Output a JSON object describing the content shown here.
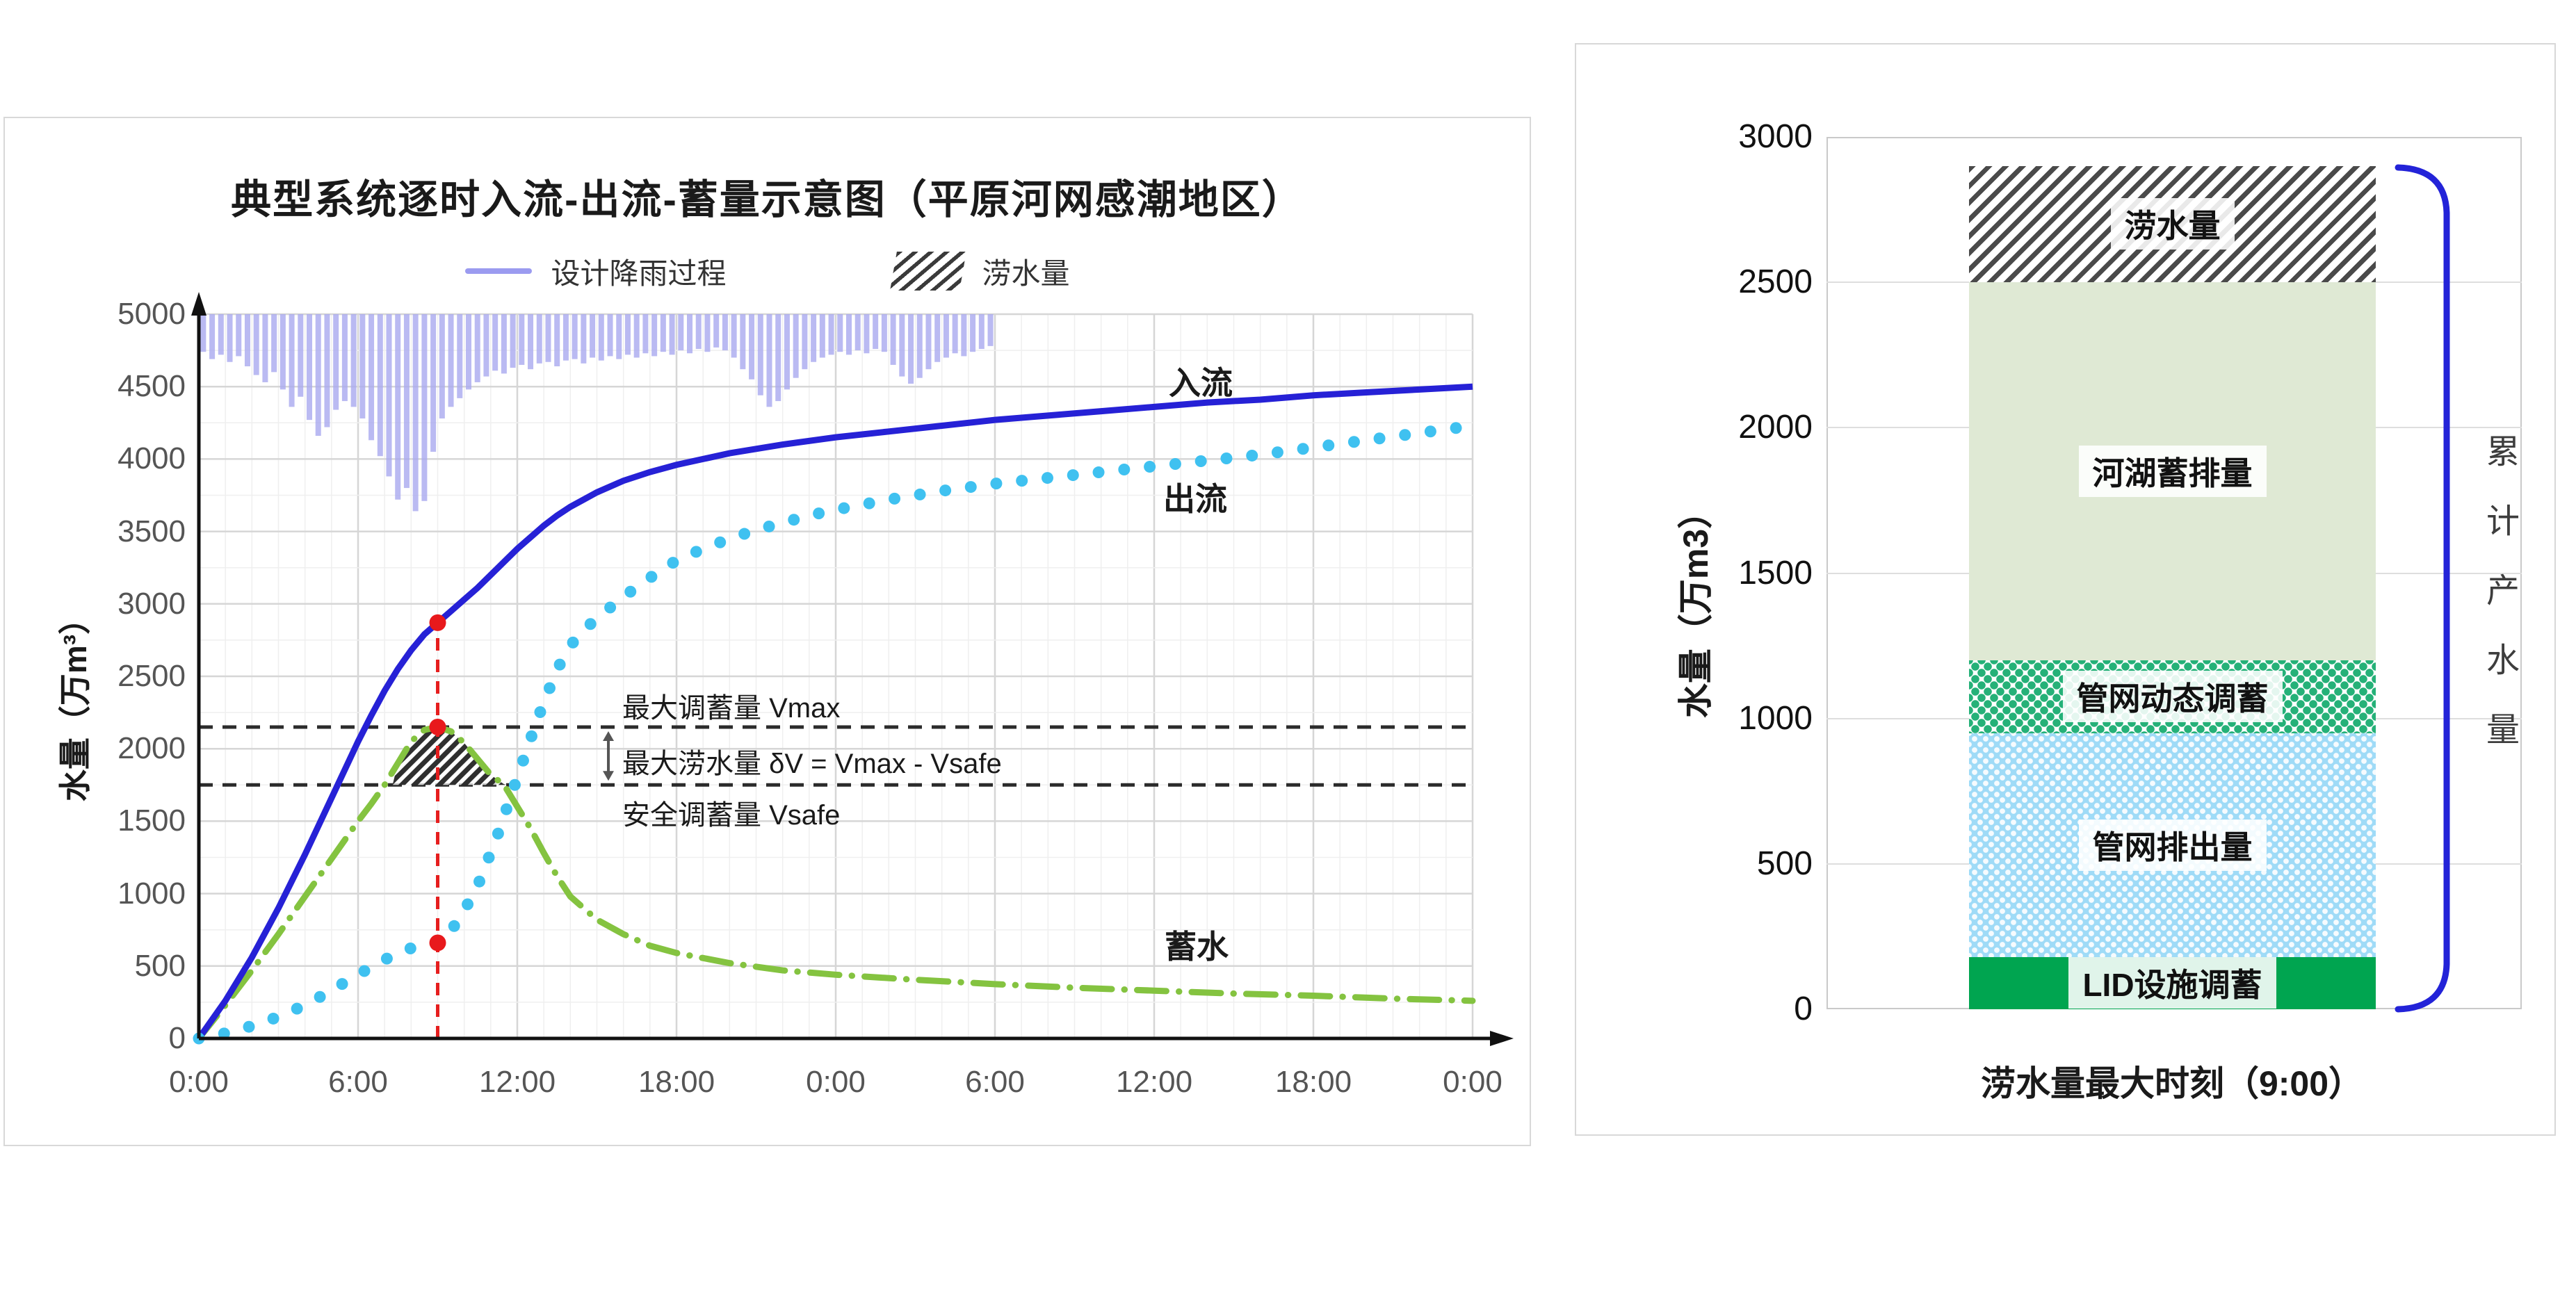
{
  "left_panel": {
    "title": "典型系统逐时入流-出流-蓄量示意图（平原河网感潮地区）",
    "legend": {
      "rain_label": "设计降雨过程",
      "waterlogging_label": "涝水量"
    },
    "y_axis_title": "水量（万m³）",
    "series_labels": {
      "inflow": "入流",
      "outflow": "出流",
      "storage": "蓄水"
    },
    "annotation_labels": {
      "vmax": "最大调蓄量 Vmax",
      "delta": "最大涝水量 δV = Vmax - Vsafe",
      "vsafe": "安全调蓄量 Vsafe"
    }
  },
  "right_panel": {
    "y_axis_title": "水量（万m3）",
    "x_label": "涝水量最大时刻（9:00）",
    "bracket_label": "累计产水量"
  },
  "chart_data": [
    {
      "type": "line",
      "title": "典型系统逐时入流-出流-蓄量示意图（平原河网感潮地区）",
      "ylabel": "水量（万m³）",
      "ylim": [
        0,
        5000
      ],
      "y_tick_step": 500,
      "y_minor_step": 250,
      "x_hours": 48,
      "x_tick_labels": [
        "0:00",
        "6:00",
        "12:00",
        "18:00",
        "0:00",
        "6:00",
        "12:00",
        "18:00",
        "0:00"
      ],
      "x_tick_step_hours": 6,
      "x_minor_step_hours": 1,
      "grid": true,
      "legend_position": "top-center",
      "series": [
        {
          "name": "入流",
          "style": "solid-line",
          "color": "#2621d6",
          "points": [
            [
              0,
              0
            ],
            [
              1,
              260
            ],
            [
              2,
              560
            ],
            [
              3,
              900
            ],
            [
              4,
              1270
            ],
            [
              5,
              1660
            ],
            [
              6,
              2050
            ],
            [
              6.5,
              2230
            ],
            [
              7,
              2400
            ],
            [
              7.5,
              2550
            ],
            [
              8,
              2680
            ],
            [
              8.5,
              2790
            ],
            [
              9,
              2870
            ],
            [
              9.5,
              2950
            ],
            [
              10,
              3030
            ],
            [
              10.5,
              3110
            ],
            [
              11,
              3200
            ],
            [
              11.5,
              3290
            ],
            [
              12,
              3380
            ],
            [
              12.5,
              3460
            ],
            [
              13,
              3540
            ],
            [
              13.5,
              3610
            ],
            [
              14,
              3670
            ],
            [
              14.5,
              3720
            ],
            [
              15,
              3770
            ],
            [
              16,
              3850
            ],
            [
              17,
              3910
            ],
            [
              18,
              3960
            ],
            [
              19,
              4000
            ],
            [
              20,
              4040
            ],
            [
              21,
              4070
            ],
            [
              22,
              4100
            ],
            [
              24,
              4150
            ],
            [
              26,
              4190
            ],
            [
              28,
              4230
            ],
            [
              30,
              4270
            ],
            [
              32,
              4300
            ],
            [
              34,
              4330
            ],
            [
              36,
              4360
            ],
            [
              38,
              4390
            ],
            [
              40,
              4410
            ],
            [
              42,
              4440
            ],
            [
              44,
              4460
            ],
            [
              46,
              4480
            ],
            [
              48,
              4500
            ]
          ]
        },
        {
          "name": "出流",
          "style": "dots",
          "color": "#3fc1f0",
          "points": [
            [
              0,
              0
            ],
            [
              0.75,
              25
            ],
            [
              1.5,
              60
            ],
            [
              2.25,
              100
            ],
            [
              3,
              150
            ],
            [
              3.75,
              210
            ],
            [
              4.5,
              280
            ],
            [
              5.25,
              360
            ],
            [
              6,
              440
            ],
            [
              6.75,
              520
            ],
            [
              7.5,
              590
            ],
            [
              8.25,
              640
            ],
            [
              9,
              660
            ],
            [
              9.75,
              800
            ],
            [
              10.5,
              1050
            ],
            [
              11.25,
              1400
            ],
            [
              12,
              1800
            ],
            [
              12.75,
              2200
            ],
            [
              13.5,
              2550
            ],
            [
              14.25,
              2780
            ],
            [
              15,
              2900
            ],
            [
              16,
              3050
            ],
            [
              17,
              3180
            ],
            [
              18,
              3300
            ],
            [
              19,
              3380
            ],
            [
              20,
              3450
            ],
            [
              21,
              3510
            ],
            [
              22,
              3560
            ],
            [
              23,
              3610
            ],
            [
              24,
              3650
            ],
            [
              26,
              3720
            ],
            [
              28,
              3780
            ],
            [
              30,
              3830
            ],
            [
              32,
              3870
            ],
            [
              34,
              3910
            ],
            [
              36,
              3950
            ],
            [
              38,
              3990
            ],
            [
              40,
              4030
            ],
            [
              42,
              4080
            ],
            [
              44,
              4130
            ],
            [
              46,
              4180
            ],
            [
              48,
              4230
            ]
          ]
        },
        {
          "name": "蓄水",
          "style": "dash-dot",
          "color": "#84c340",
          "points": [
            [
              0,
              0
            ],
            [
              1,
              230
            ],
            [
              2,
              470
            ],
            [
              3,
              720
            ],
            [
              4,
              980
            ],
            [
              5,
              1240
            ],
            [
              6,
              1500
            ],
            [
              6.5,
              1620
            ],
            [
              7,
              1750
            ],
            [
              7.5,
              1900
            ],
            [
              8,
              2050
            ],
            [
              8.5,
              2130
            ],
            [
              9,
              2150
            ],
            [
              9.5,
              2120
            ],
            [
              10,
              2040
            ],
            [
              10.5,
              1930
            ],
            [
              11,
              1820
            ],
            [
              11.5,
              1750
            ],
            [
              12,
              1600
            ],
            [
              12.5,
              1450
            ],
            [
              13,
              1280
            ],
            [
              13.5,
              1120
            ],
            [
              14,
              980
            ],
            [
              15,
              820
            ],
            [
              16,
              720
            ],
            [
              17,
              640
            ],
            [
              18,
              590
            ],
            [
              20,
              520
            ],
            [
              22,
              470
            ],
            [
              24,
              440
            ],
            [
              27,
              405
            ],
            [
              30,
              375
            ],
            [
              33,
              350
            ],
            [
              36,
              330
            ],
            [
              39,
              310
            ],
            [
              42,
              295
            ],
            [
              45,
              275
            ],
            [
              48,
              260
            ]
          ]
        },
        {
          "name": "设计降雨过程",
          "style": "rain-bars-from-top",
          "color": "#a9a9ef",
          "start_hour": 0,
          "interval_hours": 0.3333,
          "depths": [
            260,
            310,
            280,
            330,
            290,
            360,
            420,
            470,
            400,
            520,
            640,
            570,
            730,
            840,
            780,
            660,
            600,
            640,
            720,
            870,
            980,
            1120,
            1280,
            1200,
            1360,
            1290,
            950,
            720,
            640,
            580,
            520,
            470,
            430,
            390,
            410,
            370,
            350,
            380,
            340,
            330,
            360,
            320,
            310,
            340,
            300,
            320,
            290,
            310,
            280,
            300,
            270,
            290,
            260,
            280,
            250,
            270,
            240,
            260,
            230,
            250,
            300,
            380,
            450,
            560,
            640,
            600,
            520,
            440,
            380,
            330,
            300,
            280,
            260,
            280,
            250,
            270,
            240,
            260,
            350,
            430,
            480,
            440,
            380,
            330,
            300,
            270,
            290,
            260,
            240,
            220
          ]
        }
      ],
      "annotations": {
        "vmax_value": 2150,
        "vsafe_value": 1750,
        "event_hour": 9,
        "red_points": [
          [
            9,
            2870
          ],
          [
            9,
            2150
          ],
          [
            9,
            660
          ]
        ],
        "hatch_region": [
          [
            7.3,
            1750
          ],
          [
            7.5,
            1900
          ],
          [
            8,
            2050
          ],
          [
            8.5,
            2130
          ],
          [
            9,
            2150
          ],
          [
            9.5,
            2120
          ],
          [
            10,
            2040
          ],
          [
            10.5,
            1930
          ],
          [
            11,
            1820
          ],
          [
            11.5,
            1755
          ],
          [
            11.6,
            1750
          ]
        ]
      }
    },
    {
      "type": "bar",
      "stacked": true,
      "categories": [
        "涝水量最大时刻（9:00）"
      ],
      "ylabel": "水量（万m3）",
      "ylim": [
        0,
        3000
      ],
      "y_tick_step": 500,
      "grid": true,
      "segments": [
        {
          "label": "LID设施调蓄",
          "from": 0,
          "to": 180,
          "style": "solid-green",
          "color": "#00a550"
        },
        {
          "label": "管网排出量",
          "from": 180,
          "to": 950,
          "style": "blue-dots",
          "color": "#9fdbf7"
        },
        {
          "label": "管网动态调蓄",
          "from": 950,
          "to": 1200,
          "style": "teal-check",
          "color": "#25b178"
        },
        {
          "label": "河湖蓄排量",
          "from": 1200,
          "to": 2500,
          "style": "solid-sage",
          "color": "#dfe9d4"
        },
        {
          "label": "涝水量",
          "from": 2500,
          "to": 2900,
          "style": "hatch",
          "color": "#4a4a4a"
        }
      ],
      "bracket": {
        "label": "累计产水量",
        "color": "#2323d8",
        "covers": [
          0,
          2900
        ]
      }
    }
  ]
}
